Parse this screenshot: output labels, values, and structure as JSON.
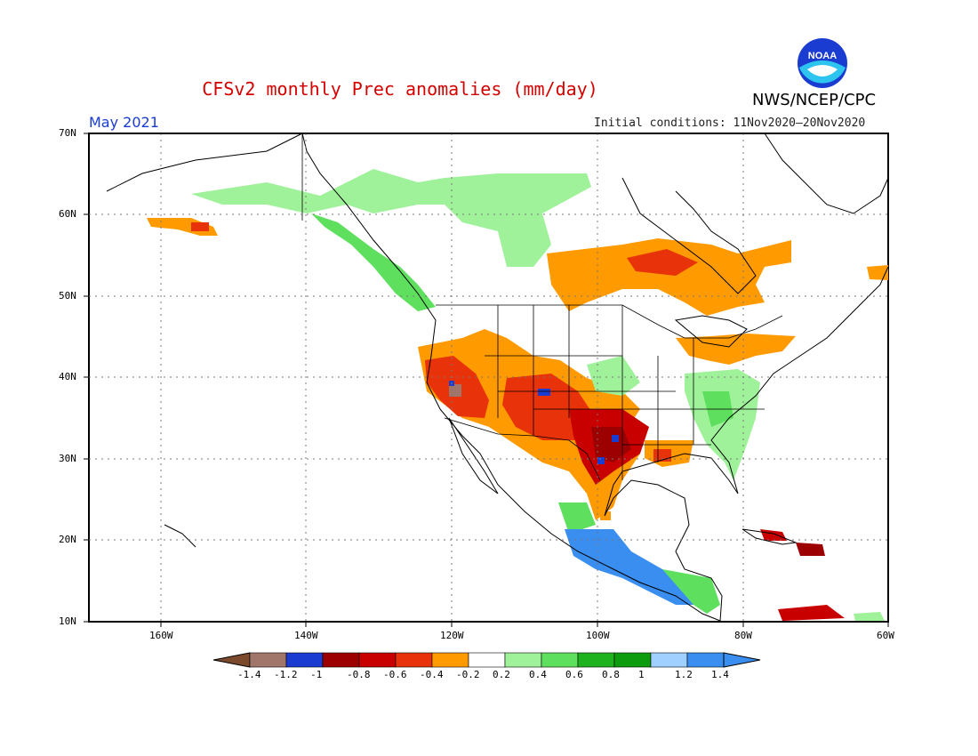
{
  "header": {
    "title": "CFSv2 monthly Prec anomalies (mm/day)",
    "agency": "NWS/NCEP/CPC",
    "period": "May 2021",
    "initial_conditions": "Initial conditions: 11Nov2020—20Nov2020",
    "logo_text": "NOAA"
  },
  "axes": {
    "lat_labels": [
      "70N",
      "60N",
      "50N",
      "40N",
      "30N",
      "20N",
      "10N"
    ],
    "lon_labels": [
      "160W",
      "140W",
      "120W",
      "100W",
      "80W",
      "60W"
    ]
  },
  "legend": {
    "values": [
      "-1.4",
      "-1.2",
      "-1",
      "-0.8",
      "-0.6",
      "-0.4",
      "-0.2",
      "0.2",
      "0.4",
      "0.6",
      "0.8",
      "1",
      "1.2",
      "1.4"
    ],
    "colors": [
      "#7b4a2c",
      "#a0766a",
      "#1a3cd0",
      "#9c0000",
      "#c80000",
      "#e8320a",
      "#ff9a00",
      "#ffffff",
      "#9ff29a",
      "#5ee05e",
      "#1fb21f",
      "#0d9c0d",
      "#a0d0ff",
      "#3a8ef0",
      "#3a8ef0"
    ]
  },
  "regions": [
    {
      "name": "alaska-dry",
      "color": "#ff9a00"
    },
    {
      "name": "california-dry",
      "color": "#e8320a"
    },
    {
      "name": "texas-very-dry",
      "color": "#c80000"
    },
    {
      "name": "mexico-wet",
      "color": "#3a8ef0"
    },
    {
      "name": "southeast-wet",
      "color": "#9ff29a"
    },
    {
      "name": "canada-wet",
      "color": "#9ff29a"
    }
  ]
}
